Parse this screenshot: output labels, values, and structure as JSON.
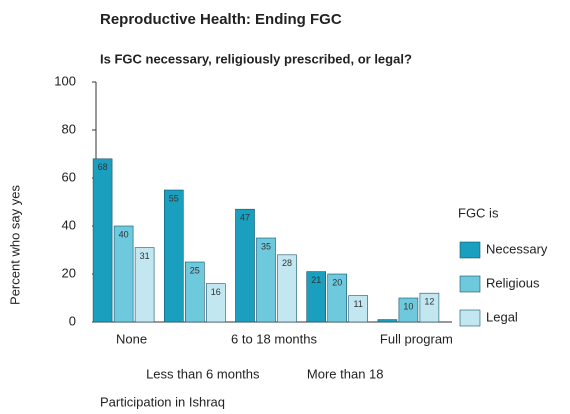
{
  "chart_data": {
    "type": "bar",
    "title": "Reproductive Health: Ending FGC",
    "subtitle": "Is FGC necessary, religiously prescribed, or legal?",
    "y_label": "Percent who say yes",
    "x_label": "Participation in Ishraq",
    "legend_title": "FGC is",
    "categories": [
      "None",
      "Less than 6 months",
      "6 to 18 months",
      "More than 18",
      "Full program"
    ],
    "series": [
      {
        "name": "Necessary",
        "color": "#1b9fbe",
        "values": [
          68,
          55,
          47,
          21,
          1
        ]
      },
      {
        "name": "Religious",
        "color": "#6ec9dd",
        "values": [
          40,
          25,
          35,
          20,
          10
        ]
      },
      {
        "name": "Legal",
        "color": "#c2e7f0",
        "values": [
          31,
          16,
          28,
          11,
          12
        ]
      }
    ],
    "ylim": [
      0,
      100
    ],
    "yticks": [
      0,
      20,
      40,
      60,
      80,
      100
    ],
    "legend": "right"
  }
}
